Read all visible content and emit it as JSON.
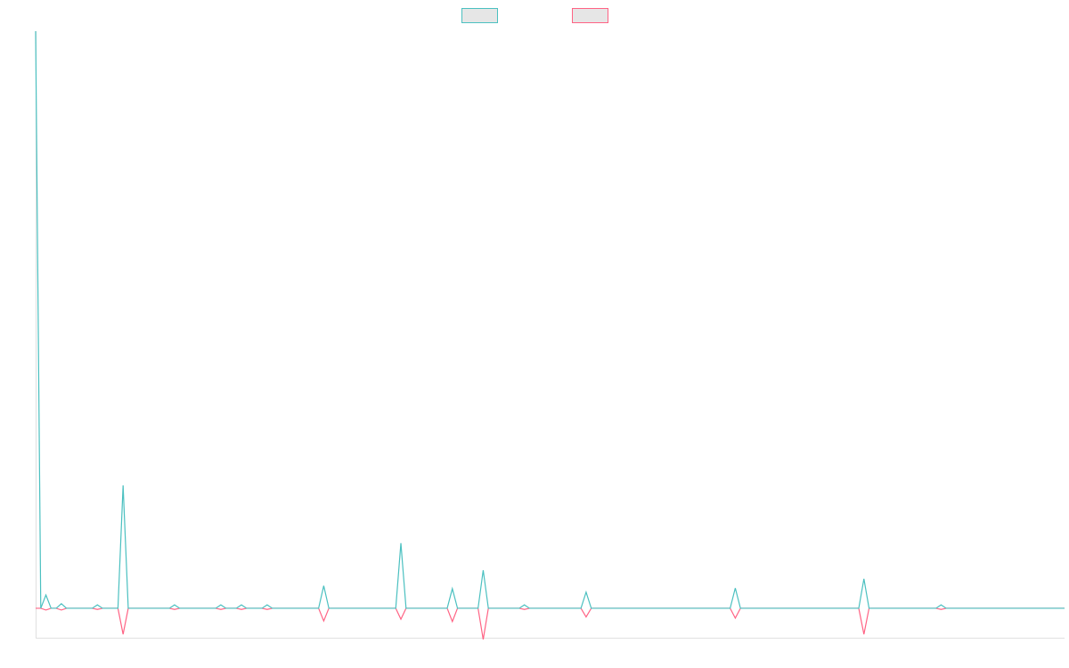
{
  "chart_data": {
    "type": "line",
    "x": [
      0,
      1,
      2,
      3,
      4,
      5,
      6,
      11,
      12,
      13,
      16,
      17,
      18,
      26,
      27,
      28,
      35,
      36,
      37,
      39,
      40,
      41,
      44,
      45,
      46,
      55,
      56,
      57,
      70,
      71,
      72,
      80,
      81,
      82,
      86,
      87,
      88,
      94,
      95,
      96,
      106,
      107,
      108,
      135,
      136,
      137,
      160,
      161,
      162,
      175,
      176,
      177,
      200
    ],
    "series": [
      {
        "color": "#4bc0c0",
        "values": [
          100,
          0,
          2.3,
          0,
          0,
          0.8,
          0,
          0,
          0.6,
          0,
          0,
          21.3,
          0,
          0,
          0.6,
          0,
          0,
          0.6,
          0,
          0,
          0.6,
          0,
          0,
          0.6,
          0,
          0,
          3.9,
          0,
          0,
          11.3,
          0,
          0,
          3.4,
          0,
          0,
          6.6,
          0,
          0,
          0.6,
          0,
          0,
          2.8,
          0,
          0,
          3.5,
          0,
          0,
          5.1,
          0,
          0,
          0.6,
          0,
          0
        ]
      },
      {
        "color": "#ff6384",
        "values": [
          0,
          0,
          -0.3,
          0,
          0,
          -0.3,
          0,
          0,
          -0.2,
          0,
          0,
          -4.5,
          0,
          0,
          -0.2,
          0,
          0,
          -0.2,
          0,
          0,
          -0.2,
          0,
          0,
          -0.2,
          0,
          0,
          -2.2,
          0,
          0,
          -1.9,
          0,
          0,
          -2.3,
          0,
          0,
          -5.4,
          0,
          0,
          -0.2,
          0,
          0,
          -1.5,
          0,
          0,
          -1.7,
          0,
          0,
          -4.5,
          0,
          0,
          -0.2,
          0,
          0
        ]
      }
    ],
    "xlim": [
      0,
      200
    ],
    "ylim": [
      -5.1,
      100
    ],
    "legend": "top"
  }
}
